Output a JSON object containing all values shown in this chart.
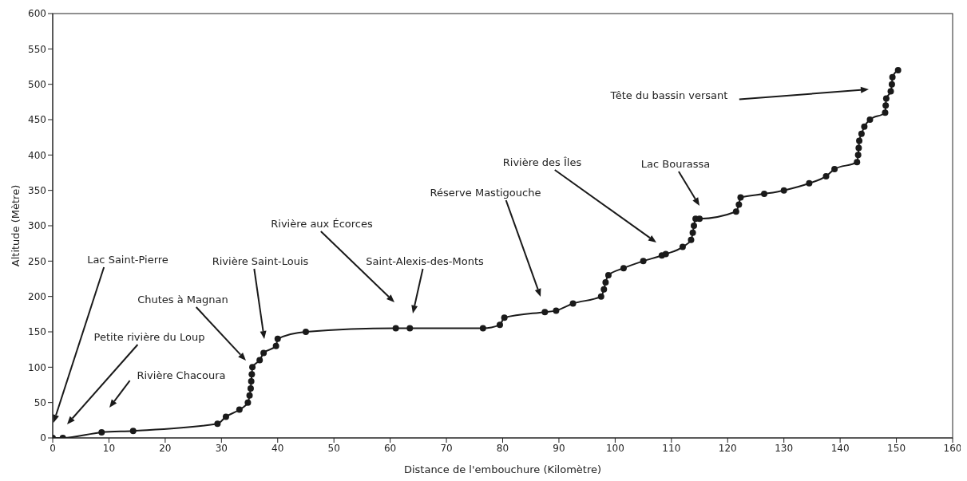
{
  "chart_data": {
    "type": "line",
    "xlabel": "Distance de l'embouchure (Kilomètre)",
    "ylabel": "Altitude (Mètre)",
    "x": [
      0,
      1.8,
      8.7,
      14.3,
      29.3,
      30.8,
      33.2,
      34.7,
      35,
      35.2,
      35.3,
      35.4,
      35.5,
      36.8,
      37.5,
      39.7,
      40,
      45,
      61,
      63.5,
      76.5,
      79.5,
      80.3,
      87.5,
      89.5,
      92.5,
      97.5,
      98,
      98.3,
      98.8,
      101.5,
      105,
      108.3,
      109,
      112,
      113.5,
      113.8,
      114,
      114.3,
      115,
      121.5,
      122,
      122.3,
      126.5,
      130,
      134.5,
      137.5,
      139,
      143,
      143.2,
      143.3,
      143.4,
      143.8,
      144.3,
      145.3,
      148,
      148.1,
      148.2,
      149,
      149.2,
      149.3,
      150.3
    ],
    "series": [
      {
        "color": "#1a1a1a",
        "values": [
          0,
          0,
          8,
          10,
          20,
          30,
          40,
          50,
          60,
          70,
          80,
          90,
          100,
          110,
          120,
          130,
          140,
          150,
          155,
          155,
          155,
          160,
          170,
          178,
          180,
          190,
          200,
          210,
          220,
          230,
          240,
          250,
          258,
          260,
          270,
          280,
          290,
          300,
          310,
          310,
          320,
          330,
          340,
          345,
          350,
          360,
          370,
          380,
          390,
          400,
          410,
          420,
          430,
          440,
          450,
          460,
          470,
          480,
          490,
          500,
          510,
          520
        ]
      }
    ],
    "xlim": [
      0,
      160
    ],
    "xticks": [
      0,
      10,
      20,
      30,
      40,
      50,
      60,
      70,
      80,
      90,
      100,
      110,
      120,
      130,
      140,
      150,
      160
    ],
    "ylim": [
      0,
      600
    ],
    "yticks": [
      0,
      50,
      100,
      150,
      200,
      250,
      300,
      350,
      400,
      450,
      500,
      550,
      600
    ],
    "grid": false,
    "legend": false,
    "marker": "circle",
    "line_style": "solid",
    "annotations": [
      "Lac Saint-Pierre",
      "Petite rivière du Loup",
      "Rivière Chacoura",
      "Chutes à Magnan",
      "Rivière Saint-Louis",
      "Rivière aux Écorces",
      "Saint-Alexis-des-Monts",
      "Réserve Mastigouche",
      "Rivière des Îles",
      "Lac Bourassa",
      "Tête du bassin versant"
    ]
  }
}
